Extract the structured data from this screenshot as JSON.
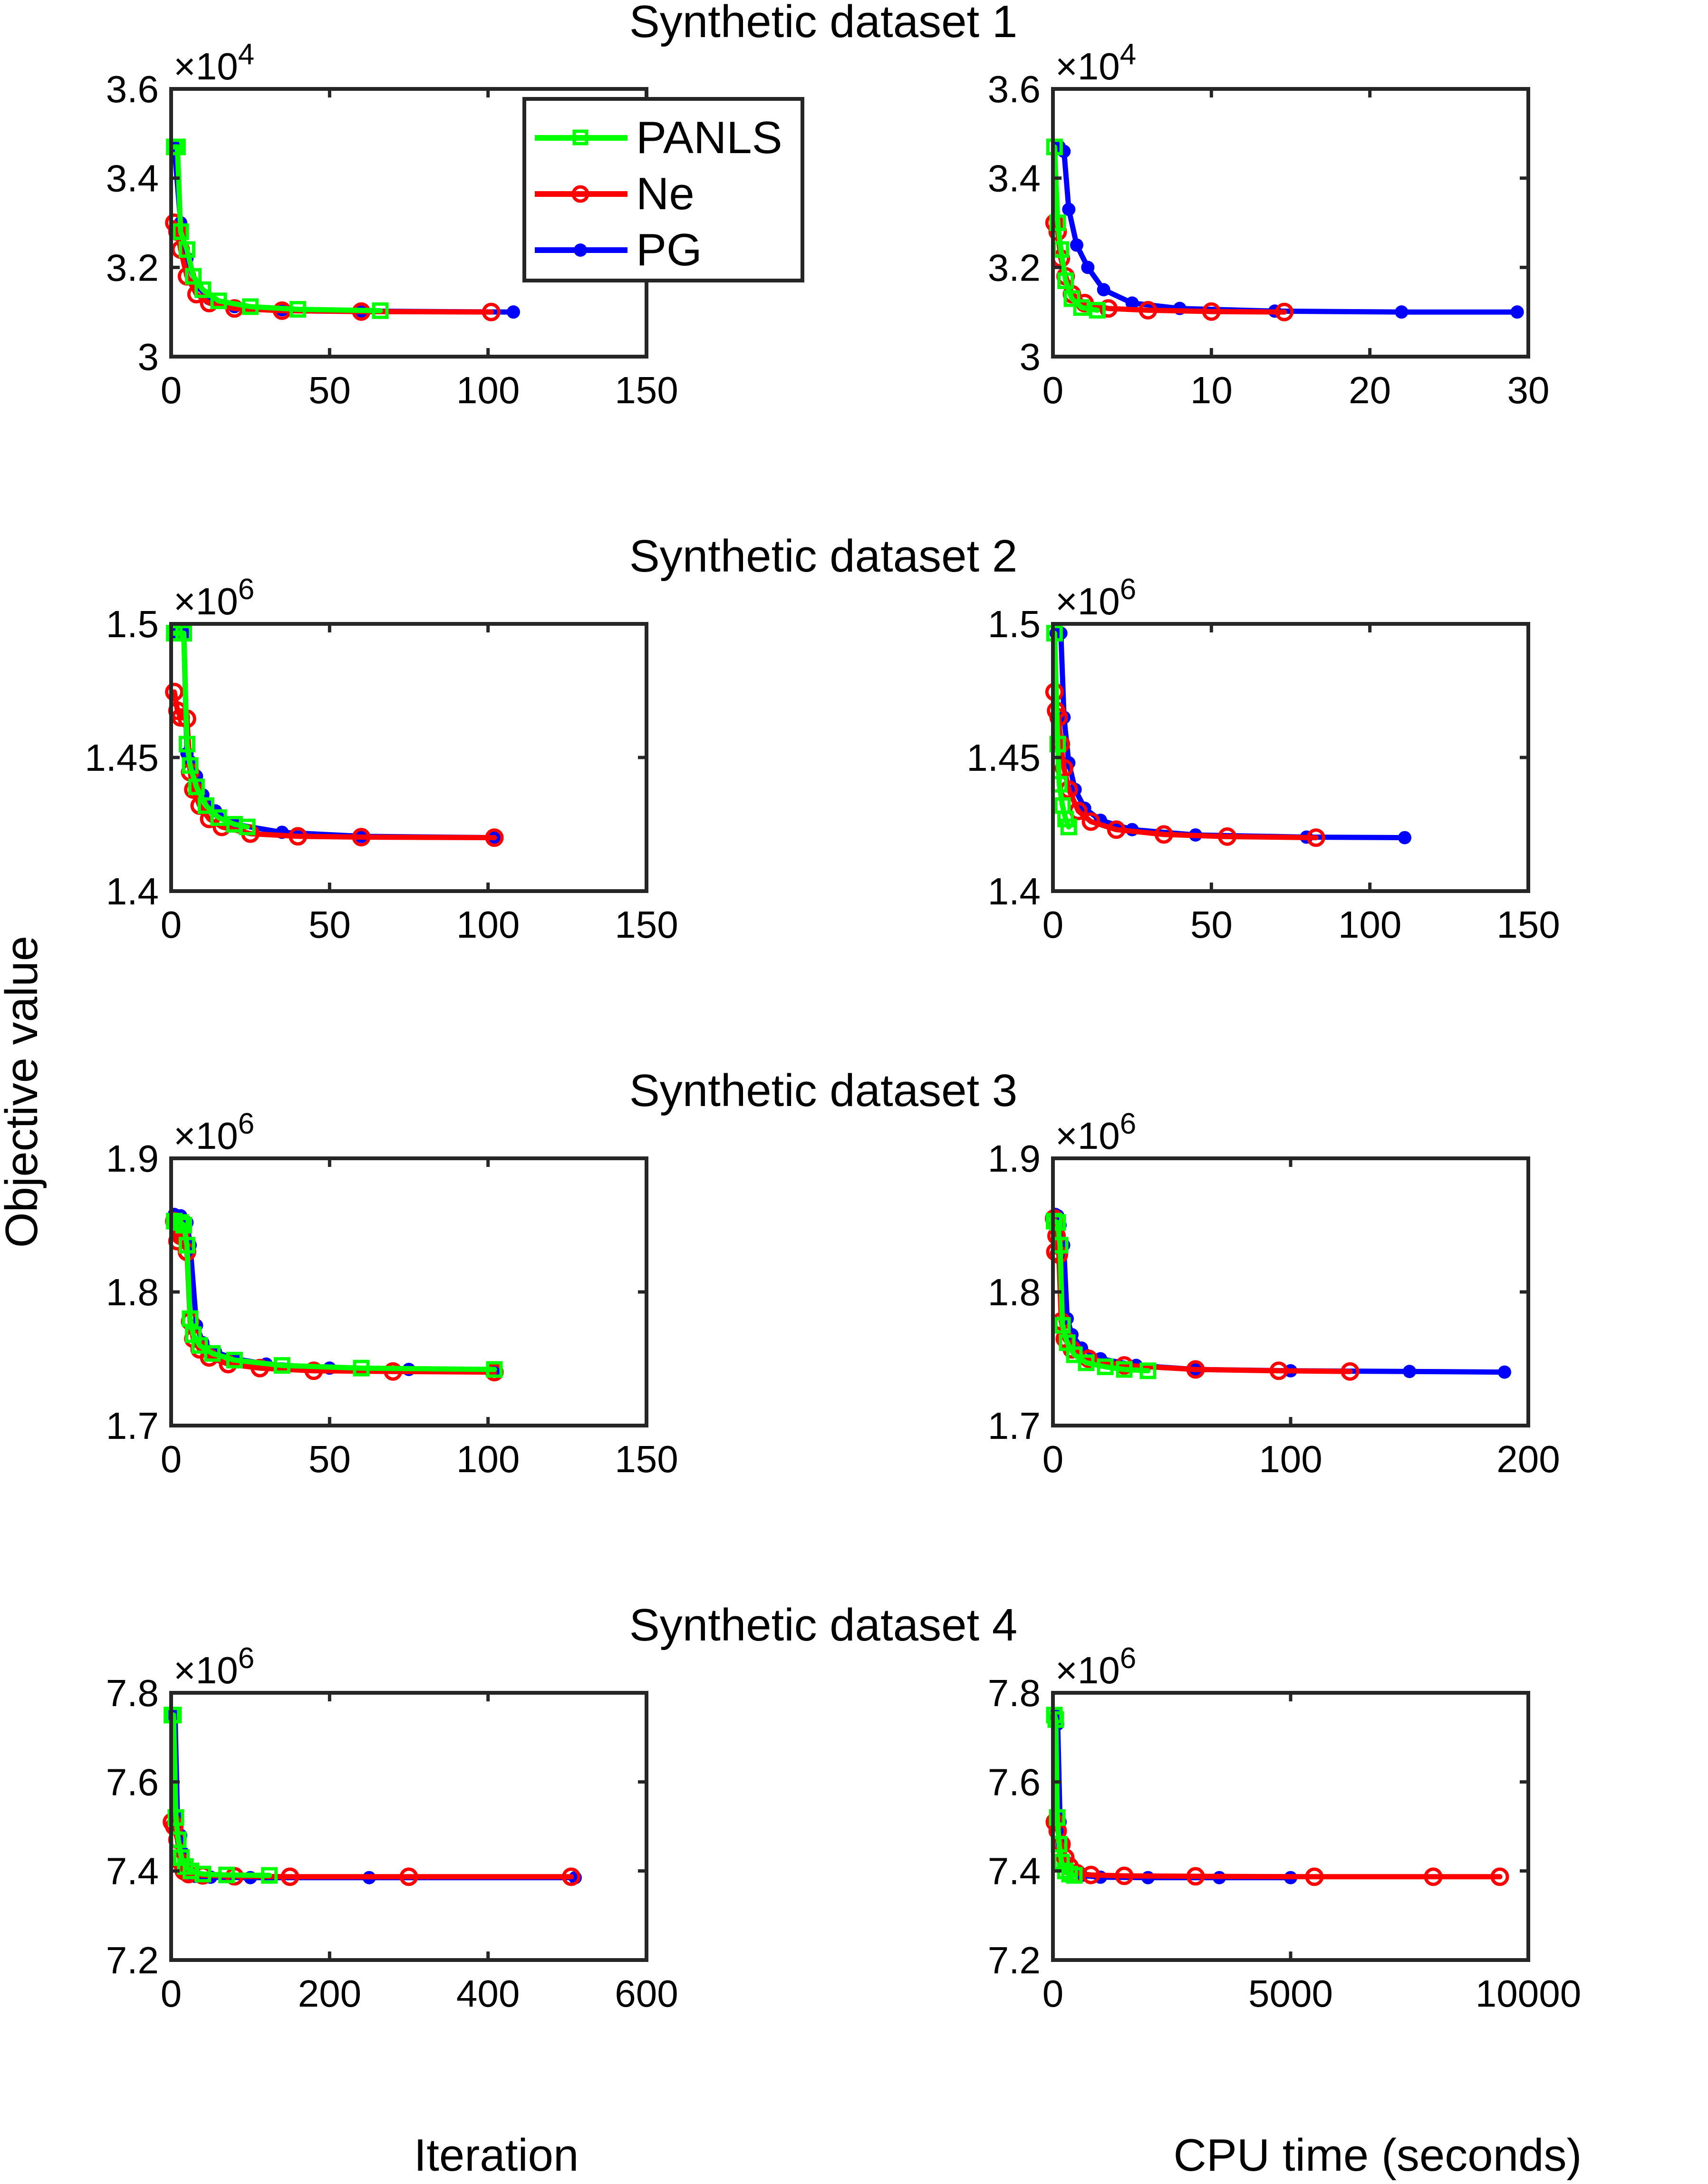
{
  "figure": {
    "ylabel": "Objective value",
    "bottom_xlabels": [
      "Iteration",
      "CPU time (seconds)"
    ],
    "legend": [
      {
        "name": "PANLS",
        "color": "#00ff00",
        "marker": "square"
      },
      {
        "name": "Ne",
        "color": "#ff0000",
        "marker": "circle"
      },
      {
        "name": "PG",
        "color": "#0000ff",
        "marker": "dot"
      }
    ],
    "row_titles": [
      "Synthetic dataset 1",
      "Synthetic dataset 2",
      "Synthetic dataset 3",
      "Synthetic dataset 4"
    ]
  },
  "chart_data": [
    {
      "type": "line",
      "title": "Synthetic dataset 1",
      "xlabel": "",
      "ylabel": "",
      "xlim": [
        0,
        150
      ],
      "ylim": [
        3.0,
        3.6
      ],
      "xticks": [
        "0",
        "50",
        "100",
        "150"
      ],
      "yticks": [
        "3",
        "3.2",
        "3.4",
        "3.6"
      ],
      "exponent": "4",
      "legend": "top-right",
      "series": [
        {
          "name": "PG",
          "color": "#0000ff",
          "x": [
            1,
            3,
            5,
            8,
            12,
            20,
            35,
            60,
            108
          ],
          "y": [
            3.47,
            3.3,
            3.22,
            3.16,
            3.13,
            3.112,
            3.105,
            3.102,
            3.1
          ]
        },
        {
          "name": "Ne",
          "color": "#ff0000",
          "x": [
            1,
            2,
            3,
            5,
            8,
            12,
            20,
            35,
            60,
            101
          ],
          "y": [
            3.3,
            3.28,
            3.24,
            3.18,
            3.14,
            3.12,
            3.108,
            3.103,
            3.101,
            3.1
          ]
        },
        {
          "name": "PANLS",
          "color": "#00ff00",
          "x": [
            1,
            2,
            3,
            5,
            7,
            10,
            15,
            25,
            40,
            66
          ],
          "y": [
            3.47,
            3.47,
            3.28,
            3.24,
            3.18,
            3.15,
            3.125,
            3.112,
            3.106,
            3.103
          ]
        }
      ]
    },
    {
      "type": "line",
      "title": "",
      "xlabel": "",
      "ylabel": "",
      "xlim": [
        0,
        30
      ],
      "ylim": [
        3.0,
        3.6
      ],
      "xticks": [
        "0",
        "10",
        "20",
        "30"
      ],
      "yticks": [
        "3",
        "3.2",
        "3.4",
        "3.6"
      ],
      "exponent": "4",
      "series": [
        {
          "name": "PG",
          "color": "#0000ff",
          "x": [
            0.4,
            0.7,
            1.0,
            1.5,
            2.2,
            3.2,
            5,
            8,
            14,
            22,
            29.3
          ],
          "y": [
            3.47,
            3.46,
            3.33,
            3.25,
            3.2,
            3.15,
            3.12,
            3.108,
            3.102,
            3.1,
            3.1
          ]
        },
        {
          "name": "Ne",
          "color": "#ff0000",
          "x": [
            0.1,
            0.3,
            0.5,
            0.8,
            1.2,
            2,
            3.5,
            6,
            10,
            14.6
          ],
          "y": [
            3.3,
            3.28,
            3.22,
            3.18,
            3.14,
            3.12,
            3.108,
            3.104,
            3.101,
            3.1
          ]
        },
        {
          "name": "PANLS",
          "color": "#00ff00",
          "x": [
            0.1,
            0.3,
            0.5,
            0.8,
            1.2,
            1.8,
            2.8
          ],
          "y": [
            3.47,
            3.3,
            3.24,
            3.17,
            3.13,
            3.11,
            3.104
          ]
        }
      ]
    },
    {
      "type": "line",
      "title": "Synthetic dataset 2",
      "xlabel": "",
      "ylabel": "",
      "xlim": [
        0,
        150
      ],
      "ylim": [
        1.4,
        1.5
      ],
      "xticks": [
        "0",
        "50",
        "100",
        "150"
      ],
      "yticks": [
        "1.4",
        "1.45",
        "1.5"
      ],
      "exponent": "6",
      "series": [
        {
          "name": "PG",
          "color": "#0000ff",
          "x": [
            1,
            4,
            5,
            6,
            8,
            10,
            14,
            20,
            35,
            60,
            102
          ],
          "y": [
            1.4965,
            1.4965,
            1.4515,
            1.4485,
            1.443,
            1.436,
            1.43,
            1.425,
            1.422,
            1.4205,
            1.42
          ]
        },
        {
          "name": "Ne",
          "color": "#ff0000",
          "x": [
            1,
            2,
            3,
            5,
            6,
            7,
            9,
            12,
            16,
            25,
            40,
            60,
            102
          ],
          "y": [
            1.4745,
            1.4675,
            1.465,
            1.4645,
            1.4445,
            1.438,
            1.432,
            1.427,
            1.424,
            1.4215,
            1.4205,
            1.4202,
            1.42
          ]
        },
        {
          "name": "PANLS",
          "color": "#00ff00",
          "x": [
            1,
            4,
            5,
            6,
            8,
            11,
            15,
            20,
            24
          ],
          "y": [
            1.4965,
            1.4965,
            1.455,
            1.447,
            1.439,
            1.432,
            1.4275,
            1.425,
            1.424
          ]
        }
      ]
    },
    {
      "type": "line",
      "title": "",
      "xlabel": "",
      "ylabel": "",
      "xlim": [
        0,
        150
      ],
      "ylim": [
        1.4,
        1.5
      ],
      "xticks": [
        "0",
        "50",
        "100",
        "150"
      ],
      "yticks": [
        "1.4",
        "1.45",
        "1.5"
      ],
      "exponent": "6",
      "series": [
        {
          "name": "PG",
          "color": "#0000ff",
          "x": [
            1,
            2.5,
            3.5,
            5,
            7,
            10,
            15,
            25,
            45,
            80,
            111
          ],
          "y": [
            1.4965,
            1.4965,
            1.465,
            1.448,
            1.438,
            1.431,
            1.4265,
            1.423,
            1.421,
            1.4202,
            1.42
          ]
        },
        {
          "name": "Ne",
          "color": "#ff0000",
          "x": [
            0.5,
            1,
            1.8,
            2.5,
            3.5,
            5,
            8,
            12,
            20,
            35,
            55,
            83
          ],
          "y": [
            1.4745,
            1.4675,
            1.465,
            1.455,
            1.446,
            1.438,
            1.43,
            1.426,
            1.423,
            1.4212,
            1.4204,
            1.42
          ]
        },
        {
          "name": "PANLS",
          "color": "#00ff00",
          "x": [
            0.5,
            1.5,
            2,
            3,
            4,
            5
          ],
          "y": [
            1.4965,
            1.455,
            1.44,
            1.432,
            1.427,
            1.424
          ]
        }
      ]
    },
    {
      "type": "line",
      "title": "Synthetic dataset 3",
      "xlabel": "",
      "ylabel": "",
      "xlim": [
        0,
        150
      ],
      "ylim": [
        1.7,
        1.9
      ],
      "xticks": [
        "0",
        "50",
        "100",
        "150"
      ],
      "yticks": [
        "1.7",
        "1.8",
        "1.9"
      ],
      "exponent": "6",
      "series": [
        {
          "name": "PG",
          "color": "#0000ff",
          "x": [
            1,
            3,
            5,
            6,
            8,
            10,
            14,
            20,
            30,
            50,
            75,
            102
          ],
          "y": [
            1.858,
            1.857,
            1.852,
            1.835,
            1.775,
            1.762,
            1.755,
            1.75,
            1.746,
            1.743,
            1.742,
            1.741
          ]
        },
        {
          "name": "Ne",
          "color": "#ff0000",
          "x": [
            1,
            2,
            3,
            5,
            6,
            7,
            9,
            12,
            18,
            28,
            45,
            70,
            102
          ],
          "y": [
            1.853,
            1.838,
            1.842,
            1.83,
            1.778,
            1.765,
            1.757,
            1.751,
            1.746,
            1.743,
            1.741,
            1.7405,
            1.74
          ]
        },
        {
          "name": "PANLS",
          "color": "#00ff00",
          "x": [
            1,
            3,
            4,
            5,
            6,
            7,
            9,
            13,
            20,
            35,
            60,
            102
          ],
          "y": [
            1.853,
            1.852,
            1.85,
            1.835,
            1.78,
            1.768,
            1.76,
            1.754,
            1.749,
            1.745,
            1.743,
            1.742
          ]
        }
      ]
    },
    {
      "type": "line",
      "title": "",
      "xlabel": "",
      "ylabel": "",
      "xlim": [
        0,
        200
      ],
      "ylim": [
        1.7,
        1.9
      ],
      "xticks": [
        "0",
        "100",
        "200"
      ],
      "yticks": [
        "1.7",
        "1.8",
        "1.9"
      ],
      "exponent": "6",
      "series": [
        {
          "name": "PG",
          "color": "#0000ff",
          "x": [
            1,
            2,
            3,
            4.5,
            6,
            8,
            12,
            20,
            35,
            60,
            100,
            150,
            190
          ],
          "y": [
            1.858,
            1.857,
            1.85,
            1.835,
            1.78,
            1.768,
            1.758,
            1.75,
            1.745,
            1.742,
            1.741,
            1.7405,
            1.74
          ]
        },
        {
          "name": "Ne",
          "color": "#ff0000",
          "x": [
            0.5,
            1,
            1.5,
            2.5,
            3.5,
            5,
            8,
            15,
            30,
            60,
            95,
            125
          ],
          "y": [
            1.855,
            1.83,
            1.842,
            1.828,
            1.778,
            1.765,
            1.757,
            1.75,
            1.745,
            1.742,
            1.741,
            1.7405
          ]
        },
        {
          "name": "PANLS",
          "color": "#00ff00",
          "x": [
            0.5,
            2,
            3,
            4,
            6,
            9,
            14,
            22,
            30,
            40
          ],
          "y": [
            1.853,
            1.852,
            1.835,
            1.775,
            1.762,
            1.753,
            1.747,
            1.744,
            1.742,
            1.741
          ]
        }
      ]
    },
    {
      "type": "line",
      "title": "Synthetic dataset 4",
      "xlabel": "Iteration",
      "ylabel": "",
      "xlim": [
        0,
        600
      ],
      "ylim": [
        7.2,
        7.8
      ],
      "xticks": [
        "0",
        "200",
        "400",
        "600"
      ],
      "yticks": [
        "7.2",
        "7.4",
        "7.6",
        "7.8"
      ],
      "exponent": "6",
      "series": [
        {
          "name": "PG",
          "color": "#0000ff",
          "x": [
            1,
            5,
            8,
            12,
            15,
            18,
            22,
            30,
            50,
            100,
            250,
            510
          ],
          "y": [
            7.75,
            7.75,
            7.52,
            7.48,
            7.44,
            7.41,
            7.395,
            7.388,
            7.386,
            7.385,
            7.385,
            7.385
          ]
        },
        {
          "name": "Ne",
          "color": "#ff0000",
          "x": [
            1,
            4,
            8,
            12,
            16,
            22,
            40,
            80,
            150,
            300,
            505
          ],
          "y": [
            7.51,
            7.5,
            7.47,
            7.42,
            7.4,
            7.393,
            7.39,
            7.388,
            7.387,
            7.387,
            7.387
          ]
        },
        {
          "name": "PANLS",
          "color": "#00ff00",
          "x": [
            1,
            3,
            6,
            9,
            13,
            18,
            25,
            40,
            70,
            124
          ],
          "y": [
            7.75,
            7.75,
            7.52,
            7.47,
            7.43,
            7.41,
            7.4,
            7.393,
            7.391,
            7.39
          ]
        }
      ]
    },
    {
      "type": "line",
      "title": "",
      "xlabel": "CPU time (seconds)",
      "ylabel": "",
      "xlim": [
        0,
        10000
      ],
      "ylim": [
        7.2,
        7.8
      ],
      "xticks": [
        "0",
        "5000",
        "10000"
      ],
      "yticks": [
        "7.2",
        "7.4",
        "7.6",
        "7.8"
      ],
      "exponent": "6",
      "series": [
        {
          "name": "PG",
          "color": "#0000ff",
          "x": [
            50,
            100,
            150,
            200,
            280,
            400,
            600,
            1000,
            2000,
            3500,
            5000
          ],
          "y": [
            7.75,
            7.73,
            7.51,
            7.46,
            7.42,
            7.4,
            7.39,
            7.386,
            7.385,
            7.385,
            7.385
          ]
        },
        {
          "name": "Ne",
          "color": "#ff0000",
          "x": [
            40,
            100,
            180,
            260,
            350,
            500,
            800,
            1500,
            3000,
            5500,
            8000,
            9400
          ],
          "y": [
            7.51,
            7.49,
            7.46,
            7.43,
            7.41,
            7.395,
            7.391,
            7.389,
            7.388,
            7.387,
            7.387,
            7.387
          ]
        },
        {
          "name": "PANLS",
          "color": "#00ff00",
          "x": [
            30,
            60,
            90,
            130,
            180,
            260,
            350,
            450
          ],
          "y": [
            7.75,
            7.74,
            7.52,
            7.46,
            7.42,
            7.4,
            7.393,
            7.39
          ]
        }
      ]
    }
  ]
}
